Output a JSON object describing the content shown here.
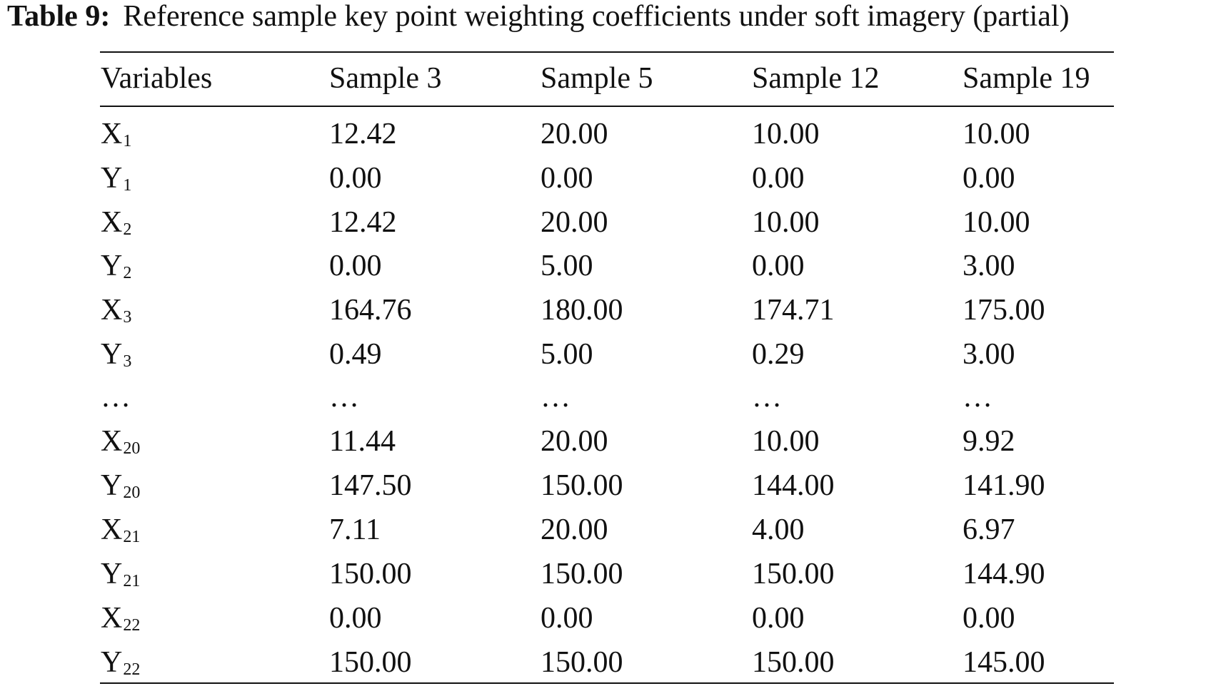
{
  "caption": {
    "label": "Table 9:",
    "text": "Reference sample key point weighting coefficients under soft imagery (partial)"
  },
  "table": {
    "headers": [
      "Variables",
      "Sample 3",
      "Sample 5",
      "Sample 12",
      "Sample 19"
    ],
    "rows": [
      {
        "var": "X",
        "sub": "1",
        "values": [
          "12.42",
          "20.00",
          "10.00",
          "10.00"
        ]
      },
      {
        "var": "Y",
        "sub": "1",
        "values": [
          "0.00",
          "0.00",
          "0.00",
          "0.00"
        ]
      },
      {
        "var": "X",
        "sub": "2",
        "values": [
          "12.42",
          "20.00",
          "10.00",
          "10.00"
        ]
      },
      {
        "var": "Y",
        "sub": "2",
        "values": [
          "0.00",
          "5.00",
          "0.00",
          "3.00"
        ]
      },
      {
        "var": "X",
        "sub": "3",
        "values": [
          "164.76",
          "180.00",
          "174.71",
          "175.00"
        ]
      },
      {
        "var": "Y",
        "sub": "3",
        "values": [
          "0.49",
          "5.00",
          "0.29",
          "3.00"
        ]
      },
      {
        "var": "…",
        "sub": "",
        "values": [
          "…",
          "…",
          "…",
          "…"
        ]
      },
      {
        "var": "X",
        "sub": "20",
        "values": [
          "11.44",
          "20.00",
          "10.00",
          "9.92"
        ]
      },
      {
        "var": "Y",
        "sub": "20",
        "values": [
          "147.50",
          "150.00",
          "144.00",
          "141.90"
        ]
      },
      {
        "var": "X",
        "sub": "21",
        "values": [
          "7.11",
          "20.00",
          "4.00",
          "6.97"
        ]
      },
      {
        "var": "Y",
        "sub": "21",
        "values": [
          "150.00",
          "150.00",
          "150.00",
          "144.90"
        ]
      },
      {
        "var": "X",
        "sub": "22",
        "values": [
          "0.00",
          "0.00",
          "0.00",
          "0.00"
        ]
      },
      {
        "var": "Y",
        "sub": "22",
        "values": [
          "150.00",
          "150.00",
          "150.00",
          "145.00"
        ]
      }
    ]
  }
}
